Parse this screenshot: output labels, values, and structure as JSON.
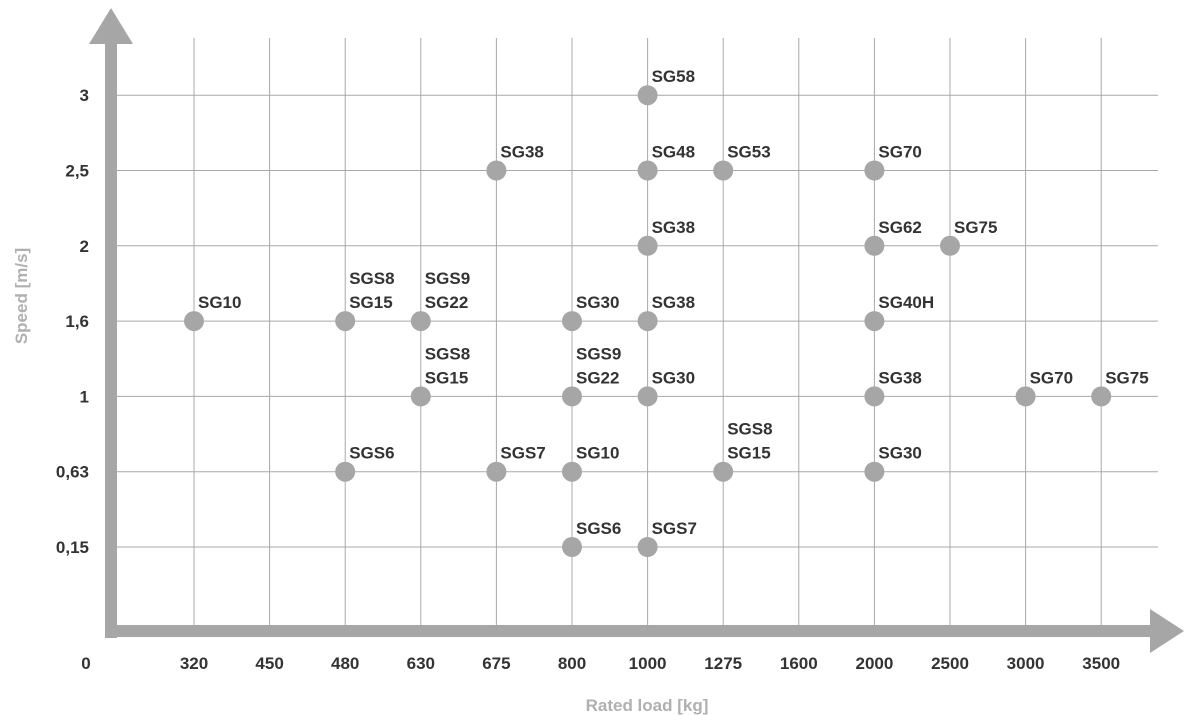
{
  "chart_data": {
    "type": "scatter",
    "title": "",
    "xlabel": "Rated load [kg]",
    "ylabel": "Speed [m/s]",
    "origin_label": "0",
    "x_categories": [
      "320",
      "450",
      "480",
      "630",
      "675",
      "800",
      "1000",
      "1275",
      "1600",
      "2000",
      "2500",
      "3000",
      "3500"
    ],
    "y_categories": [
      "0,15",
      "0,63",
      "1",
      "1,6",
      "2",
      "2,5",
      "3"
    ],
    "grid": true,
    "colors": {
      "axis": "#a6a6a6",
      "point": "#a6a6a6",
      "grid": "#a8a8a8",
      "text": "#333333",
      "axis_label": "#b0b0b0"
    },
    "points": [
      {
        "x": "1000",
        "y": "3",
        "labels": [
          "SG58"
        ]
      },
      {
        "x": "675",
        "y": "2,5",
        "labels": [
          "SG38"
        ]
      },
      {
        "x": "1000",
        "y": "2,5",
        "labels": [
          "SG48"
        ]
      },
      {
        "x": "1275",
        "y": "2,5",
        "labels": [
          "SG53"
        ]
      },
      {
        "x": "2000",
        "y": "2,5",
        "labels": [
          "SG70"
        ]
      },
      {
        "x": "1000",
        "y": "2",
        "labels": [
          "SG38"
        ]
      },
      {
        "x": "2000",
        "y": "2",
        "labels": [
          "SG62"
        ]
      },
      {
        "x": "2500",
        "y": "2",
        "labels": [
          "SG75"
        ]
      },
      {
        "x": "320",
        "y": "1,6",
        "labels": [
          "SG10"
        ]
      },
      {
        "x": "480",
        "y": "1,6",
        "labels": [
          "SGS8",
          "SG15"
        ]
      },
      {
        "x": "630",
        "y": "1,6",
        "labels": [
          "SGS9",
          "SG22"
        ]
      },
      {
        "x": "800",
        "y": "1,6",
        "labels": [
          "SG30"
        ]
      },
      {
        "x": "1000",
        "y": "1,6",
        "labels": [
          "SG38"
        ]
      },
      {
        "x": "2000",
        "y": "1,6",
        "labels": [
          "SG40H"
        ]
      },
      {
        "x": "630",
        "y": "1",
        "labels": [
          "SGS8",
          "SG15"
        ]
      },
      {
        "x": "800",
        "y": "1",
        "labels": [
          "SGS9",
          "SG22"
        ]
      },
      {
        "x": "1000",
        "y": "1",
        "labels": [
          "SG30"
        ]
      },
      {
        "x": "2000",
        "y": "1",
        "labels": [
          "SG38"
        ]
      },
      {
        "x": "3000",
        "y": "1",
        "labels": [
          "SG70"
        ]
      },
      {
        "x": "3500",
        "y": "1",
        "labels": [
          "SG75"
        ]
      },
      {
        "x": "480",
        "y": "0,63",
        "labels": [
          "SGS6"
        ]
      },
      {
        "x": "675",
        "y": "0,63",
        "labels": [
          "SGS7"
        ]
      },
      {
        "x": "800",
        "y": "0,63",
        "labels": [
          "SG10"
        ]
      },
      {
        "x": "1275",
        "y": "0,63",
        "labels": [
          "SGS8",
          "SG15"
        ]
      },
      {
        "x": "2000",
        "y": "0,63",
        "labels": [
          "SG30"
        ]
      },
      {
        "x": "800",
        "y": "0,15",
        "labels": [
          "SGS6"
        ]
      },
      {
        "x": "1000",
        "y": "0,15",
        "labels": [
          "SGS7"
        ]
      }
    ]
  }
}
